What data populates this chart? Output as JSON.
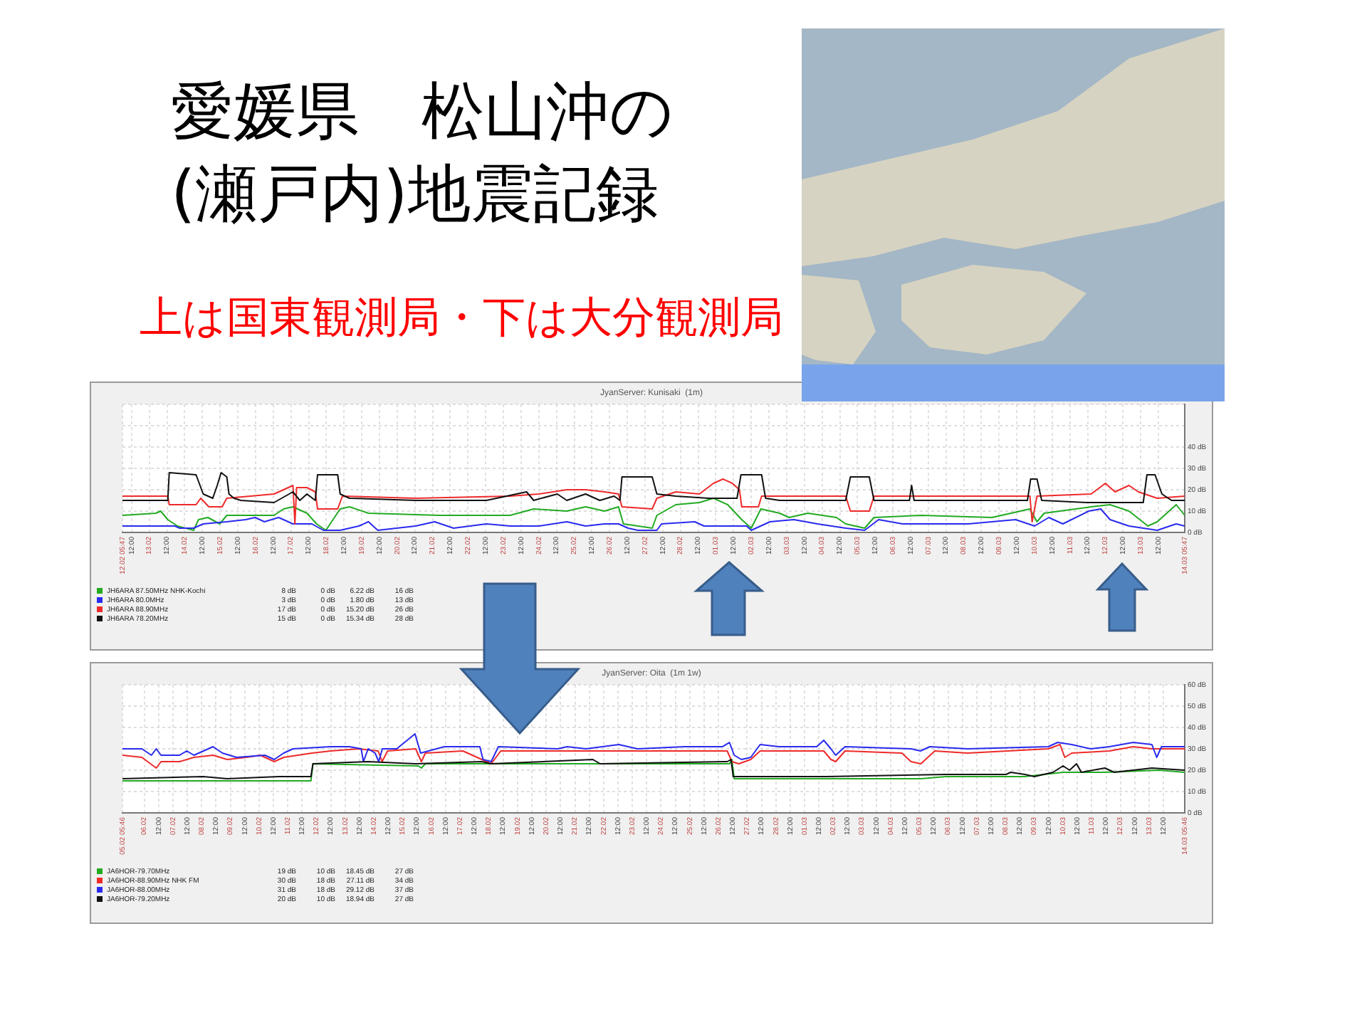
{
  "chart_data": [
    {
      "type": "other",
      "title": "愛媛県　松山沖の\n(瀬戸内)地震記録",
      "subtitle": "上は国東観測局・下は大分観測局"
    },
    {
      "type": "line",
      "title": "JyanServer: Kunisaki  (1m)",
      "xlim": [
        "--02-12T05:47",
        "--03-14T05:47"
      ],
      "xticks": [
        {
          "value": "--02-12T05:47",
          "label": "12.02 05:47"
        },
        {
          "value": "--02-12T12:00",
          "label": "12:00"
        },
        {
          "value": "--02-13",
          "label": "13.02"
        },
        {
          "value": "--02-13T12:00",
          "label": "12:00"
        },
        {
          "value": "--02-14",
          "label": "14.02"
        },
        {
          "value": "--02-14T12:00",
          "label": "12:00"
        },
        {
          "value": "--02-15",
          "label": "15.02"
        },
        {
          "value": "--02-15T12:00",
          "label": "12:00"
        },
        {
          "value": "--02-16",
          "label": "16.02"
        },
        {
          "value": "--02-16T12:00",
          "label": "12:00"
        },
        {
          "value": "--02-17",
          "label": "17.02"
        },
        {
          "value": "--02-17T12:00",
          "label": "12:00"
        },
        {
          "value": "--02-18",
          "label": "18.02"
        },
        {
          "value": "--02-18T12:00",
          "label": "12:00"
        },
        {
          "value": "--02-19",
          "label": "19.02"
        },
        {
          "value": "--02-19T12:00",
          "label": "12:00"
        },
        {
          "value": "--02-20",
          "label": "20.02"
        },
        {
          "value": "--02-20T12:00",
          "label": "12:00"
        },
        {
          "value": "--02-21",
          "label": "21.02"
        },
        {
          "value": "--02-21T12:00",
          "label": "12:00"
        },
        {
          "value": "--02-22",
          "label": "22.02"
        },
        {
          "value": "--02-22T12:00",
          "label": "12:00"
        },
        {
          "value": "--02-23",
          "label": "23.02"
        },
        {
          "value": "--02-23T12:00",
          "label": "12:00"
        },
        {
          "value": "--02-24",
          "label": "24.02"
        },
        {
          "value": "--02-24T12:00",
          "label": "12:00"
        },
        {
          "value": "--02-25",
          "label": "25.02"
        },
        {
          "value": "--02-25T12:00",
          "label": "12:00"
        },
        {
          "value": "--02-26",
          "label": "26.02"
        },
        {
          "value": "--02-26T12:00",
          "label": "12:00"
        },
        {
          "value": "--02-27",
          "label": "27.02"
        },
        {
          "value": "--02-27T12:00",
          "label": "12:00"
        },
        {
          "value": "--02-28",
          "label": "28.02"
        },
        {
          "value": "--02-28T12:00",
          "label": "12:00"
        },
        {
          "value": "--03-01",
          "label": "01.03"
        },
        {
          "value": "--03-01T12:00",
          "label": "12:00"
        },
        {
          "value": "--03-02",
          "label": "02.03"
        },
        {
          "value": "--03-02T12:00",
          "label": "12:00"
        },
        {
          "value": "--03-03",
          "label": "03.03"
        },
        {
          "value": "--03-03T12:00",
          "label": "12:00"
        },
        {
          "value": "--03-04",
          "label": "04.03"
        },
        {
          "value": "--03-04T12:00",
          "label": "12:00"
        },
        {
          "value": "--03-05",
          "label": "05.03"
        },
        {
          "value": "--03-05T12:00",
          "label": "12:00"
        },
        {
          "value": "--03-06",
          "label": "06.03"
        },
        {
          "value": "--03-06T12:00",
          "label": "12:00"
        },
        {
          "value": "--03-07",
          "label": "07.03"
        },
        {
          "value": "--03-07T12:00",
          "label": "12:00"
        },
        {
          "value": "--03-08",
          "label": "08.03"
        },
        {
          "value": "--03-08T12:00",
          "label": "12:00"
        },
        {
          "value": "--03-09",
          "label": "09.03"
        },
        {
          "value": "--03-09T12:00",
          "label": "12:00"
        },
        {
          "value": "--03-10",
          "label": "10.03"
        },
        {
          "value": "--03-10T12:00",
          "label": "12:00"
        },
        {
          "value": "--03-11",
          "label": "11.03"
        },
        {
          "value": "--03-11T12:00",
          "label": "12:00"
        },
        {
          "value": "--03-12",
          "label": "12.03"
        },
        {
          "value": "--03-12T12:00",
          "label": "12:00"
        },
        {
          "value": "--03-13",
          "label": "13.03"
        },
        {
          "value": "--03-13T12:00",
          "label": "12:00"
        },
        {
          "value": "--03-14T05:47",
          "label": "14.03 05:47"
        }
      ],
      "ylim": [
        0,
        60
      ],
      "yticks": [
        {
          "value": 0,
          "label": "0 dB"
        },
        {
          "value": 10,
          "label": "10 dB"
        },
        {
          "value": 20,
          "label": "20 dB"
        },
        {
          "value": 30,
          "label": "30 dB"
        },
        {
          "value": 40,
          "label": "40 dB"
        },
        {
          "value": 50,
          "label": null
        },
        {
          "value": 60,
          "label": null
        }
      ],
      "grid": true,
      "legend": "bottom left",
      "series": [
        {
          "name": "JH6ARA 87.50MHz NHK-Kochi",
          "color": "#22aa22",
          "x": [
            "--02-12T05:47",
            "--02-13T04:30",
            "--02-13T07:40",
            "--02-13T12:30",
            "--02-13T19:00",
            "--02-14T06:00",
            "--02-14T09:20",
            "--02-14T15:40",
            "--02-14T23:40",
            "--02-15T04:30",
            "--02-16T12:30",
            "--02-16T19:00",
            "--02-17T01:20",
            "--02-17T10:50",
            "--02-17T17:20",
            "--02-17T23:40",
            "--02-18T09:20",
            "--02-18T15:40",
            "--02-19T04:30",
            "--02-21T04:30",
            "--02-23T04:30",
            "--02-23T20:30",
            "--02-24T19:00",
            "--02-25T07:40",
            "--02-25T20:30",
            "--02-26T06:00",
            "--02-26T09:20",
            "--02-26T19:10",
            "--02-27T04:50",
            "--02-27T08:00",
            "--02-27T20:50",
            "--02-28T12:50",
            "--02-28T22:20",
            "--03-01T08:00",
            "--03-01T17:30",
            "--03-02T00:00",
            "--03-02T06:30",
            "--03-02T19:10",
            "--03-03T01:40",
            "--03-03T14:20",
            "--03-04T09:40",
            "--03-04T16:00",
            "--03-05T04:50",
            "--03-05T11:10",
            "--03-06T19:10",
            "--03-08T19:10",
            "--03-09T20:50",
            "--03-10T01:40",
            "--03-10T06:30",
            "--03-11T14:20",
            "--03-12T03:10",
            "--03-12T16:00",
            "--03-13T04:50",
            "--03-13T11:10",
            "--03-14T00:00",
            "--03-14T05:47"
          ],
          "values": [
            8,
            9,
            10,
            6,
            3,
            1,
            6,
            7,
            4,
            8,
            8,
            11,
            12,
            9,
            4,
            1,
            11,
            12,
            9,
            8,
            8,
            11,
            10,
            12,
            10,
            12,
            4,
            3,
            2,
            8,
            13,
            14,
            16,
            13,
            6,
            2,
            11,
            9,
            7,
            9,
            7,
            4,
            2,
            7,
            8,
            7,
            11,
            5,
            9,
            12,
            13,
            10,
            3,
            5,
            13,
            8
          ]
        },
        {
          "name": "JH6ARA 80.0MHz",
          "color": "#2a2aee",
          "x": [
            "--02-12T05:47",
            "--02-13T17:20",
            "--02-13T20:30",
            "--02-14T06:00",
            "--02-14T12:30",
            "--02-15T04:30",
            "--02-15T17:20",
            "--02-15T23:40",
            "--02-16T06:00",
            "--02-16T15:40",
            "--02-17T01:20",
            "--02-17T14:10",
            "--02-17T22:00",
            "--02-18T09:20",
            "--02-18T22:00",
            "--02-19T04:30",
            "--02-19T10:50",
            "--02-20T12:30",
            "--02-21T01:20",
            "--02-21T14:10",
            "--02-22T12:30",
            "--02-23T04:30",
            "--02-24T00:00",
            "--02-24T19:00",
            "--02-25T07:40",
            "--02-25T20:30",
            "--02-26T06:00",
            "--02-26T12:30",
            "--02-26T19:10",
            "--02-27T08:00",
            "--02-27T11:10",
            "--02-28T09:40",
            "--02-28T16:00",
            "--03-01T20:50",
            "--03-02T00:00",
            "--03-02T12:40",
            "--03-03T04:50",
            "--03-03T20:50",
            "--03-04T16:00",
            "--03-05T04:50",
            "--03-05T14:20",
            "--03-06T06:30",
            "--03-08T03:10",
            "--03-09T11:10",
            "--03-10T00:00",
            "--03-10T09:40",
            "--03-10T19:10",
            "--03-11T12:40",
            "--03-11T20:50",
            "--03-12T03:10",
            "--03-12T16:00",
            "--03-13T11:10",
            "--03-14T00:00",
            "--03-14T05:47"
          ],
          "values": [
            3,
            3,
            2,
            2,
            4,
            5,
            6,
            7,
            5,
            7,
            4,
            4,
            1,
            1,
            3,
            5,
            1,
            3,
            5,
            2,
            4,
            3,
            3,
            5,
            3,
            4,
            4,
            2,
            1,
            1,
            4,
            5,
            3,
            3,
            1,
            5,
            6,
            4,
            2,
            1,
            6,
            4,
            4,
            6,
            3,
            7,
            4,
            10,
            11,
            6,
            3,
            1,
            4,
            3
          ]
        },
        {
          "name": "JH6ARA 88.90MHz",
          "color": "#ee2a2a",
          "x": [
            "--02-12T05:47",
            "--02-13T12:30",
            "--02-13T13:30",
            "--02-14T07:40",
            "--02-14T10:50",
            "--02-14T16:20",
            "--02-15T01:20",
            "--02-15T04:30",
            "--02-15T20:30",
            "--02-16T12:30",
            "--02-16T19:00",
            "--02-17T01:20",
            "--02-17T02:40",
            "--02-17T03:50",
            "--02-17T10:50",
            "--02-17T16:30",
            "--02-17T18:00",
            "--02-18T07:40",
            "--02-18T10:50",
            "--02-20T12:30",
            "--02-23T04:30",
            "--02-24T00:00",
            "--02-24T19:00",
            "--02-25T07:40",
            "--02-25T20:30",
            "--02-26T06:00",
            "--02-26T08:20",
            "--02-27T04:50",
            "--02-27T08:00",
            "--02-27T20:50",
            "--02-28T12:50",
            "--02-28T22:20",
            "--03-01T04:50",
            "--03-01T11:10",
            "--03-01T16:00",
            "--03-01T17:30",
            "--03-02T04:50",
            "--03-02T07:00",
            "--03-04T16:00",
            "--03-04T19:10",
            "--03-05T08:00",
            "--03-05T11:10",
            "--03-08T03:10",
            "--03-09T20:50",
            "--03-09T22:20",
            "--03-10T01:40",
            "--03-11T14:20",
            "--03-12T00:00",
            "--03-12T06:30",
            "--03-12T16:00",
            "--03-12T22:20",
            "--03-13T11:10",
            "--03-14T05:47"
          ],
          "values": [
            17,
            17,
            13,
            13,
            16,
            12,
            12,
            16,
            17,
            18,
            20,
            22,
            4,
            21,
            21,
            19,
            11,
            11,
            17,
            16,
            17,
            18,
            20,
            20,
            19,
            18,
            12,
            11,
            16,
            19,
            18,
            23,
            25,
            23,
            20,
            12,
            12,
            17,
            17,
            10,
            10,
            17,
            17,
            17,
            5,
            17,
            18,
            23,
            19,
            22,
            19,
            16,
            17
          ]
        },
        {
          "name": "JH6ARA 78.20MHz",
          "color": "#111111",
          "x": [
            "--02-12T05:47",
            "--02-13T12:30",
            "--02-13T13:30",
            "--02-14T07:40",
            "--02-14T12:30",
            "--02-14T19:00",
            "--02-14T22:00",
            "--02-15T00:40",
            "--02-15T04:30",
            "--02-15T06:00",
            "--02-15T09:20",
            "--02-15T14:00",
            "--02-16T12:30",
            "--02-17T01:20",
            "--02-17T06:00",
            "--02-17T10:50",
            "--02-17T16:30",
            "--02-17T18:00",
            "--02-18T07:40",
            "--02-18T09:20",
            "--02-18T15:40",
            "--02-20T12:30",
            "--02-22T12:30",
            "--02-23T15:40",
            "--02-23T20:30",
            "--02-24T12:30",
            "--02-24T19:00",
            "--02-25T07:40",
            "--02-25T17:20",
            "--02-26T03:00",
            "--02-26T07:00",
            "--02-26T08:20",
            "--02-27T04:50",
            "--02-27T08:00",
            "--02-27T20:50",
            "--02-28T19:10",
            "--03-01T14:20",
            "--03-01T17:00",
            "--03-02T07:00",
            "--03-02T09:40",
            "--03-02T19:10",
            "--03-04T16:00",
            "--03-04T19:10",
            "--03-05T08:00",
            "--03-05T11:10",
            "--03-06T11:10",
            "--03-06T12:40",
            "--03-06T14:20",
            "--03-08T03:10",
            "--03-09T19:10",
            "--03-09T21:20",
            "--03-10T01:40",
            "--03-10T04:50",
            "--03-11T11:10",
            "--03-13T01:40",
            "--03-13T04:10",
            "--03-13T09:40",
            "--03-13T14:20",
            "--03-13T20:50",
            "--03-14T05:47"
          ],
          "values": [
            15,
            15,
            28,
            27,
            18,
            16,
            22,
            28,
            26,
            18,
            16,
            15,
            14,
            19,
            15,
            18,
            15,
            27,
            27,
            18,
            16,
            15,
            15,
            19,
            15,
            18,
            15,
            18,
            15,
            17,
            15,
            26,
            26,
            18,
            17,
            16,
            16,
            27,
            27,
            16,
            15,
            15,
            26,
            26,
            15,
            15,
            22,
            15,
            15,
            15,
            25,
            25,
            15,
            14,
            14,
            27,
            27,
            18,
            15,
            15
          ]
        }
      ],
      "annotations": [
        "8 dB",
        "0 dB",
        "6.22 dB",
        "16 dB",
        "3 dB",
        "0 dB",
        "1.80 dB",
        "13 dB",
        "17 dB",
        "0 dB",
        "15.20 dB",
        "26 dB",
        "15 dB",
        "0 dB",
        "15.34 dB",
        "28 dB"
      ]
    },
    {
      "type": "line",
      "title": "JyanServer: Oita  (1m 1w)",
      "xlim": [
        "--02-05T05:46",
        "--03-14T05:46"
      ],
      "xticks": [
        {
          "value": "--02-05T05:46",
          "label": "05.02 05:46"
        },
        {
          "value": "--02-06",
          "label": "06.02"
        },
        {
          "value": "--02-06T12:00",
          "label": "12:00"
        },
        {
          "value": "--02-07",
          "label": "07.02"
        },
        {
          "value": "--02-07T12:00",
          "label": "12:00"
        },
        {
          "value": "--02-08",
          "label": "08.02"
        },
        {
          "value": "--02-08T12:00",
          "label": "12:00"
        },
        {
          "value": "--02-09",
          "label": "09.02"
        },
        {
          "value": "--02-09T12:00",
          "label": "12:00"
        },
        {
          "value": "--02-10",
          "label": "10.02"
        },
        {
          "value": "--02-10T12:00",
          "label": "12:00"
        },
        {
          "value": "--02-11",
          "label": "11.02"
        },
        {
          "value": "--02-11T12:00",
          "label": "12:00"
        },
        {
          "value": "--02-12",
          "label": "12.02"
        },
        {
          "value": "--02-12T12:00",
          "label": "12:00"
        },
        {
          "value": "--02-13",
          "label": "13.02"
        },
        {
          "value": "--02-13T12:00",
          "label": "12:00"
        },
        {
          "value": "--02-14",
          "label": "14.02"
        },
        {
          "value": "--02-14T12:00",
          "label": "12:00"
        },
        {
          "value": "--02-15",
          "label": "15.02"
        },
        {
          "value": "--02-15T12:00",
          "label": "12:00"
        },
        {
          "value": "--02-16",
          "label": "16.02"
        },
        {
          "value": "--02-16T12:00",
          "label": "12:00"
        },
        {
          "value": "--02-17",
          "label": "17.02"
        },
        {
          "value": "--02-17T12:00",
          "label": "12:00"
        },
        {
          "value": "--02-18",
          "label": "18.02"
        },
        {
          "value": "--02-18T12:00",
          "label": "12:00"
        },
        {
          "value": "--02-19",
          "label": "19.02"
        },
        {
          "value": "--02-19T12:00",
          "label": "12:00"
        },
        {
          "value": "--02-20",
          "label": "20.02"
        },
        {
          "value": "--02-20T12:00",
          "label": "12:00"
        },
        {
          "value": "--02-21",
          "label": "21.02"
        },
        {
          "value": "--02-21T12:00",
          "label": "12:00"
        },
        {
          "value": "--02-22",
          "label": "22.02"
        },
        {
          "value": "--02-22T12:00",
          "label": "12:00"
        },
        {
          "value": "--02-23",
          "label": "23.02"
        },
        {
          "value": "--02-23T12:00",
          "label": "12:00"
        },
        {
          "value": "--02-24",
          "label": "24.02"
        },
        {
          "value": "--02-24T12:00",
          "label": "12:00"
        },
        {
          "value": "--02-25",
          "label": "25.02"
        },
        {
          "value": "--02-25T12:00",
          "label": "12:00"
        },
        {
          "value": "--02-26",
          "label": "26.02"
        },
        {
          "value": "--02-26T12:00",
          "label": "12:00"
        },
        {
          "value": "--02-27",
          "label": "27.02"
        },
        {
          "value": "--02-27T12:00",
          "label": "12:00"
        },
        {
          "value": "--02-28",
          "label": "28.02"
        },
        {
          "value": "--02-28T12:00",
          "label": "12:00"
        },
        {
          "value": "--03-01",
          "label": "01.03"
        },
        {
          "value": "--03-01T12:00",
          "label": "12:00"
        },
        {
          "value": "--03-02",
          "label": "02.03"
        },
        {
          "value": "--03-02T12:00",
          "label": "12:00"
        },
        {
          "value": "--03-03",
          "label": "03.03"
        },
        {
          "value": "--03-03T12:00",
          "label": "12:00"
        },
        {
          "value": "--03-04",
          "label": "04.03"
        },
        {
          "value": "--03-04T12:00",
          "label": "12:00"
        },
        {
          "value": "--03-05",
          "label": "05.03"
        },
        {
          "value": "--03-05T12:00",
          "label": "12:00"
        },
        {
          "value": "--03-06",
          "label": "06.03"
        },
        {
          "value": "--03-06T12:00",
          "label": "12:00"
        },
        {
          "value": "--03-07",
          "label": "07.03"
        },
        {
          "value": "--03-07T12:00",
          "label": "12:00"
        },
        {
          "value": "--03-08",
          "label": "08.03"
        },
        {
          "value": "--03-08T12:00",
          "label": "12:00"
        },
        {
          "value": "--03-09",
          "label": "09.03"
        },
        {
          "value": "--03-09T12:00",
          "label": "12:00"
        },
        {
          "value": "--03-10",
          "label": "10.03"
        },
        {
          "value": "--03-10T12:00",
          "label": "12:00"
        },
        {
          "value": "--03-11",
          "label": "11.03"
        },
        {
          "value": "--03-11T12:00",
          "label": "12:00"
        },
        {
          "value": "--03-12",
          "label": "12.03"
        },
        {
          "value": "--03-12T12:00",
          "label": "12:00"
        },
        {
          "value": "--03-13",
          "label": "13.03"
        },
        {
          "value": "--03-13T12:00",
          "label": "12:00"
        },
        {
          "value": "--03-14T05:46",
          "label": "14.03 05:46"
        }
      ],
      "ylim": [
        0,
        60
      ],
      "yticks": [
        {
          "value": 0,
          "label": "0 dB"
        },
        {
          "value": 10,
          "label": "10 dB"
        },
        {
          "value": 20,
          "label": "20 dB"
        },
        {
          "value": 30,
          "label": "30 dB"
        },
        {
          "value": 40,
          "label": "40 dB"
        },
        {
          "value": 50,
          "label": "50 dB"
        },
        {
          "value": 60,
          "label": "60 dB"
        }
      ],
      "grid": true,
      "legend": "bottom left",
      "series": [
        {
          "name": "JA6HOR-79.70MHz",
          "color": "#22aa22",
          "x": [
            "--02-05T05:46",
            "--02-11T19:20",
            "--02-11T21:00",
            "--02-15T13:00",
            "--02-15T15:40",
            "--02-15T19:00",
            "--02-22T00:40",
            "--02-26T09:10",
            "--02-26T11:10",
            "--02-26T13:10",
            "--03-01T18:00",
            "--03-05T01:10",
            "--03-05T21:50",
            "--03-08T16:10",
            "--03-10T00:00",
            "--03-11T11:00",
            "--03-13T08:20",
            "--03-14T05:46"
          ],
          "values": [
            15,
            15,
            23,
            22,
            21,
            23,
            23,
            23,
            25,
            16,
            16,
            16,
            17,
            17,
            19,
            19,
            20,
            19
          ]
        },
        {
          "name": "JA6HOR-88.90MHz NHK FM",
          "color": "#ee2a2a",
          "x": [
            "--02-05T05:46",
            "--02-05T22:00",
            "--02-06T10:00",
            "--02-06T14:00",
            "--02-07T05:30",
            "--02-07T17:30",
            "--02-08T09:30",
            "--02-08T21:20",
            "--02-09T13:10",
            "--02-10T01:00",
            "--02-10T12:40",
            "--02-10T20:30",
            "--02-11T20:10",
            "--02-12T11:50",
            "--02-13T11:20",
            "--02-14T03:30",
            "--02-14T06:50",
            "--02-14T11:20",
            "--02-15T10:50",
            "--02-15T15:40",
            "--02-15T19:00",
            "--02-17T02:20",
            "--02-17T18:10",
            "--02-18T02:00",
            "--02-18T10:00",
            "--02-22T00:40",
            "--02-26T07:20",
            "--02-26T11:10",
            "--02-26T17:00",
            "--02-27T03:00",
            "--02-27T10:50",
            "--03-01T16:00",
            "--03-01T22:00",
            "--03-02T02:00",
            "--03-02T09:50",
            "--03-04T09:20",
            "--03-04T17:00",
            "--03-05T01:10",
            "--03-05T07:00",
            "--03-05T12:50",
            "--03-06T16:10",
            "--03-09T11:40",
            "--03-09T21:30",
            "--03-10T01:30",
            "--03-10T07:20",
            "--03-11T14:50",
            "--03-12T10:40",
            "--03-13T02:20",
            "--03-14T05:46"
          ],
          "values": [
            27,
            26,
            21,
            24,
            24,
            26,
            27,
            25,
            26,
            27,
            24,
            26,
            28,
            29,
            30,
            29,
            24,
            29,
            30,
            24,
            28,
            29,
            25,
            23,
            29,
            29,
            29,
            24,
            23,
            25,
            29,
            29,
            25,
            24,
            29,
            28,
            24,
            23,
            26,
            29,
            28,
            30,
            32,
            26,
            28,
            29,
            31,
            30,
            30
          ]
        },
        {
          "name": "JA6HOR-88.00MHz",
          "color": "#2a2aee",
          "x": [
            "--02-05T05:46",
            "--02-05T22:00",
            "--02-06T06:00",
            "--02-06T10:00",
            "--02-06T14:00",
            "--02-07T05:30",
            "--02-07T11:30",
            "--02-07T17:30",
            "--02-08T09:30",
            "--02-08T17:20",
            "--02-09T05:10",
            "--02-10T04:50",
            "--02-10T12:40",
            "--02-10T20:30",
            "--02-11T04:20",
            "--02-12T11:50",
            "--02-13T03:30",
            "--02-13T13:20",
            "--02-13T15:10",
            "--02-13T19:10",
            "--02-14T01:00",
            "--02-14T04:00",
            "--02-14T07:00",
            "--02-14T19:00",
            "--02-15T10:20",
            "--02-15T15:00",
            "--02-16T10:50",
            "--02-17T16:30",
            "--02-17T19:10",
            "--02-18T02:00",
            "--02-18T08:00",
            "--02-20T09:30",
            "--02-20T17:30",
            "--02-21T09:20",
            "--02-22T12:40",
            "--02-23T04:20",
            "--02-24T19:40",
            "--02-26T03:20",
            "--02-26T09:10",
            "--02-26T13:10",
            "--02-26T19:10",
            "--02-27T03:00",
            "--02-27T10:50",
            "--02-28T02:40",
            "--03-01T10:10",
            "--03-01T16:00",
            "--03-01T22:00",
            "--03-02T02:00",
            "--03-02T09:50",
            "--03-04T17:00",
            "--03-05T00:50",
            "--03-05T08:40",
            "--03-06T16:10",
            "--03-09T11:40",
            "--03-09T19:30",
            "--03-10T07:20",
            "--03-10T23:10",
            "--03-11T14:50",
            "--03-12T10:40",
            "--03-13T02:20",
            "--03-13T06:20",
            "--03-13T10:20",
            "--03-14T05:46"
          ],
          "values": [
            30,
            30,
            27,
            30,
            27,
            27,
            29,
            27,
            31,
            28,
            26,
            27,
            25,
            28,
            30,
            31,
            31,
            30,
            24,
            30,
            28,
            24,
            30,
            30,
            37,
            28,
            31,
            31,
            25,
            24,
            31,
            30,
            31,
            30,
            32,
            30,
            31,
            31,
            33,
            27,
            25,
            26,
            32,
            31,
            31,
            34,
            30,
            27,
            31,
            30,
            29,
            31,
            30,
            31,
            33,
            32,
            30,
            31,
            33,
            32,
            26,
            31,
            31
          ]
        },
        {
          "name": "JA6HOR-79.20MHz",
          "color": "#111111",
          "x": [
            "--02-05T05:46",
            "--02-08T01:10",
            "--02-08T21:20",
            "--02-10T16:40",
            "--02-11T19:20",
            "--02-11T21:00",
            "--02-13T19:10",
            "--02-15T10:50",
            "--02-17T18:10",
            "--02-18T02:00",
            "--02-21T15:00",
            "--02-21T21:00",
            "--02-26T07:20",
            "--02-26T10:30",
            "--02-26T12:20",
            "--03-01T18:00",
            "--03-05T21:50",
            "--03-08T00:20",
            "--03-08T04:20",
            "--03-08T16:10",
            "--03-09T00:00",
            "--03-09T15:40",
            "--03-10T00:00",
            "--03-10T05:30",
            "--03-10T11:20",
            "--03-10T15:20",
            "--03-11T11:00",
            "--03-11T18:50",
            "--03-13T02:20",
            "--03-14T05:46"
          ],
          "values": [
            16,
            17,
            16,
            17,
            17,
            23,
            24,
            23,
            24,
            23,
            25,
            23,
            24,
            25,
            17,
            17,
            18,
            18,
            19,
            18,
            17,
            19,
            22,
            20,
            23,
            19,
            21,
            19,
            21,
            20
          ]
        }
      ],
      "annotations": [
        "19 dB",
        "10 dB",
        "18.45 dB",
        "27 dB",
        "30 dB",
        "18 dB",
        "27.11 dB",
        "34 dB",
        "31 dB",
        "18 dB",
        "29.12 dB",
        "37 dB",
        "20 dB",
        "10 dB",
        "18.94 dB",
        "27 dB"
      ]
    }
  ]
}
